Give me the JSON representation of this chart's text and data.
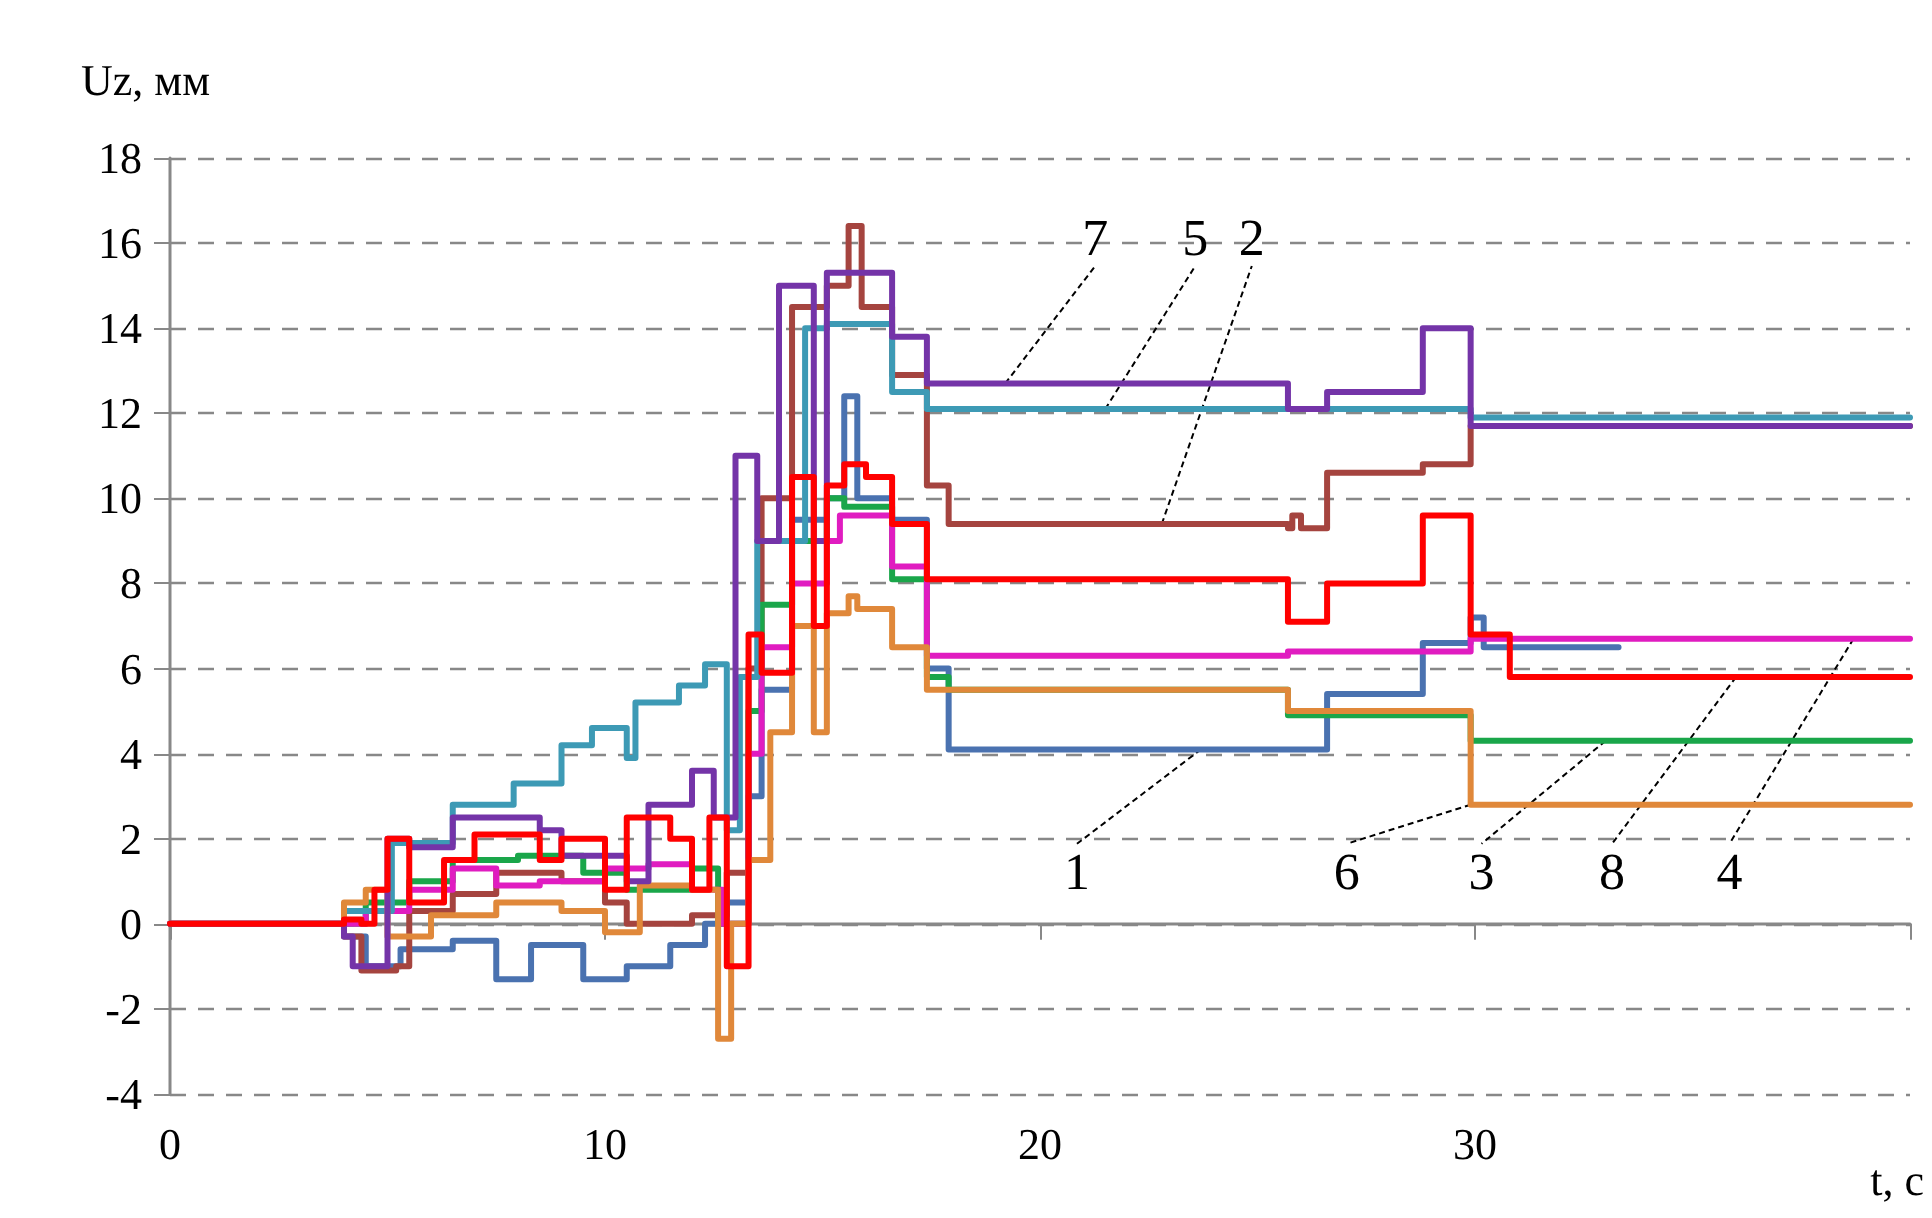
{
  "chart_data": {
    "type": "step",
    "xlabel": "t, c",
    "ylabel": "Uz, мм",
    "xlim": [
      0,
      40
    ],
    "xticks": [
      0,
      10,
      20,
      30,
      {
        "value": 40,
        "label": null
      }
    ],
    "ylim": [
      -4,
      18
    ],
    "yticks": [
      -4,
      -2,
      0,
      2,
      4,
      6,
      8,
      10,
      12,
      14,
      16,
      18
    ],
    "grid": "y",
    "line_style": "solid",
    "marker": "none",
    "series": [
      {
        "color": "#4a72b0",
        "x": [
          4,
          4.5,
          5.3,
          6.5,
          7.5,
          8.3,
          9.5,
          10.5,
          11.5,
          12.3,
          12.8,
          13.3,
          13.6,
          14.3,
          15.1,
          15.5,
          15.8,
          16.6,
          17.4,
          17.9,
          25.7,
          26.6,
          28.8,
          29.9,
          30.2,
          33.3
        ],
        "values": [
          -0.3,
          -1,
          -0.6,
          -0.4,
          -1.3,
          -0.5,
          -1.3,
          -1,
          -0.5,
          0,
          0.5,
          3,
          5.5,
          9.5,
          10,
          12.4,
          10,
          9.5,
          6,
          4.1,
          4.1,
          5.4,
          6.6,
          7.2,
          6.5,
          6.5
        ]
      },
      {
        "color": "#a5443f",
        "x": [
          0,
          2,
          4,
          4.4,
          5.2,
          5.5,
          6.5,
          7.5,
          9,
          10,
          10.5,
          12,
          12.8,
          13.3,
          13.6,
          14.3,
          15.1,
          15.6,
          15.9,
          16.6,
          17.4,
          17.9,
          25.7,
          25.8,
          26,
          26.6,
          28.8,
          29.9,
          40
        ],
        "values": [
          0,
          0,
          -0.3,
          -1.1,
          -1,
          0.3,
          0.7,
          1.2,
          1,
          0.5,
          0,
          0.2,
          1.2,
          6,
          10,
          14.5,
          15,
          16.4,
          14.5,
          12.9,
          10.3,
          9.4,
          9.3,
          9.6,
          9.3,
          10.6,
          10.8,
          11.7,
          11.7
        ]
      },
      {
        "color": "#1aa64a",
        "x": [
          4,
          4.5,
          5.5,
          6.5,
          8,
          9.5,
          10.5,
          12,
          12.6,
          13.3,
          13.6,
          14.3,
          15.1,
          15.5,
          16.6,
          17.4,
          17.9,
          25.7,
          29.9,
          40
        ],
        "values": [
          0,
          0.5,
          1,
          1.5,
          1.6,
          1.2,
          0.8,
          1.3,
          0,
          5,
          7.5,
          9,
          10,
          9.8,
          8.1,
          5.8,
          5.5,
          4.9,
          4.3,
          4.3
        ]
      },
      {
        "color": "#e01cc0",
        "x": [
          0,
          2,
          4.5,
          5.5,
          6.5,
          7.5,
          8.5,
          10,
          11,
          12,
          12.7,
          13.3,
          13.6,
          14.3,
          15.1,
          15.4,
          16.6,
          17.4,
          25.7,
          29.9,
          40
        ],
        "values": [
          0,
          0,
          0.3,
          0.8,
          1.3,
          0.9,
          1,
          1.3,
          1.4,
          0.8,
          0,
          4,
          6.5,
          8,
          9,
          9.6,
          8.4,
          6.3,
          6.4,
          6.7,
          6.7
        ]
      },
      {
        "color": "#3d9ab5",
        "x": [
          0,
          2,
          4,
          5.1,
          6.5,
          7.9,
          9,
          9.7,
          10.5,
          10.7,
          11.7,
          12.3,
          12.8,
          13.1,
          13.5,
          14.3,
          14.6,
          15.1,
          16.6,
          17.4,
          29.9,
          40
        ],
        "values": [
          0,
          0,
          0.3,
          1.9,
          2.8,
          3.3,
          4.2,
          4.6,
          3.9,
          5.2,
          5.6,
          6.1,
          2.2,
          5.8,
          9,
          9,
          14,
          14.1,
          12.5,
          12.1,
          11.9,
          11.9
        ]
      },
      {
        "color": "#e0883a",
        "x": [
          0,
          2,
          4,
          4.5,
          5,
          6,
          7.5,
          9,
          10,
          10.8,
          12,
          12.6,
          12.9,
          13.3,
          13.8,
          14.3,
          14.8,
          15.1,
          15.6,
          15.8,
          16.6,
          17.4,
          25.7,
          29.9,
          40
        ],
        "values": [
          0,
          0,
          0.5,
          0.8,
          -0.3,
          0.2,
          0.5,
          0.3,
          -0.2,
          0.9,
          0.8,
          -2.7,
          0,
          1.5,
          4.5,
          7,
          4.5,
          7.3,
          7.7,
          7.4,
          6.5,
          5.5,
          5,
          2.8,
          2.8
        ]
      },
      {
        "color": "#7434a8",
        "x": [
          0,
          2,
          4,
          4.2,
          5,
          5.5,
          6.5,
          8.5,
          9,
          10.5,
          11,
          12,
          12.5,
          13,
          13.5,
          14,
          14.6,
          14.8,
          15.1,
          16.6,
          17.4,
          25.7,
          26.6,
          28.8,
          29.9,
          40
        ],
        "values": [
          0,
          0,
          -0.3,
          -1,
          2,
          1.8,
          2.5,
          2.2,
          1.6,
          1,
          2.8,
          3.6,
          2.5,
          11,
          9,
          15,
          15,
          9,
          15.3,
          13.8,
          12.7,
          12.1,
          12.5,
          14,
          11.7,
          11.7
        ]
      },
      {
        "color": "#ff0000",
        "x": [
          0,
          4,
          4.4,
          4.7,
          5,
          5.5,
          6.3,
          7,
          8.5,
          9,
          10,
          10.5,
          11.5,
          12,
          12.4,
          12.8,
          13.3,
          13.6,
          14.3,
          14.8,
          15.1,
          15.5,
          16,
          16.6,
          17.4,
          25.7,
          26.6,
          28.8,
          29.9,
          30.8,
          40
        ],
        "values": [
          0,
          0.1,
          0,
          0.8,
          2,
          0.5,
          1.5,
          2.1,
          1.5,
          2,
          0.8,
          2.5,
          2,
          0.8,
          2.5,
          -1,
          6.8,
          5.9,
          10.5,
          7,
          10.3,
          10.8,
          10.5,
          9.4,
          8.1,
          7.1,
          8,
          9.6,
          6.8,
          5.8,
          5.8
        ]
      }
    ],
    "annotations": [
      {
        "text": "7",
        "x": 19.2,
        "y": 12.7
      },
      {
        "text": "5",
        "x": 21.5,
        "y": 12.1
      },
      {
        "text": "2",
        "x": 22.8,
        "y": 9.4
      },
      {
        "text": "1",
        "x": 23.7,
        "y": 4.1
      },
      {
        "text": "6",
        "x": 29.9,
        "y": 2.8
      },
      {
        "text": "3",
        "x": 33,
        "y": 4.3
      },
      {
        "text": "8",
        "x": 36,
        "y": 5.8
      },
      {
        "text": "4",
        "x": 38.7,
        "y": 6.7
      }
    ]
  }
}
